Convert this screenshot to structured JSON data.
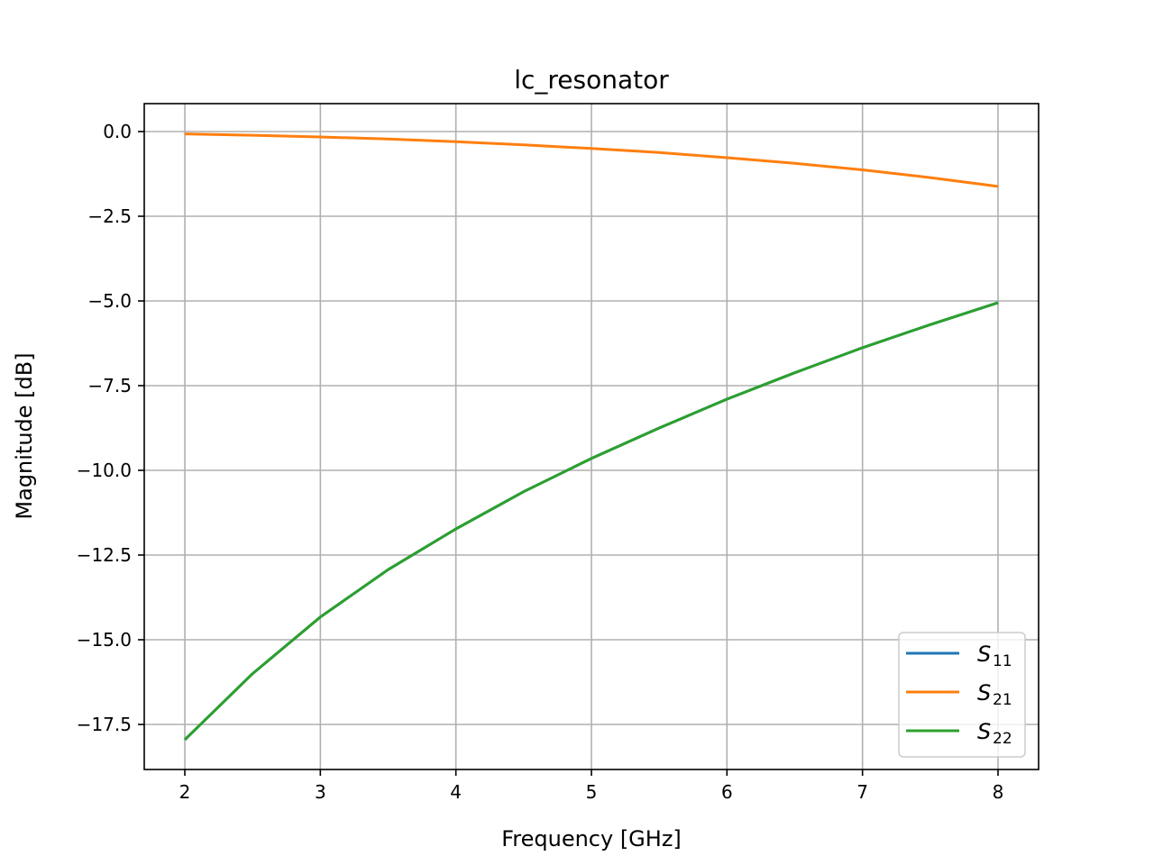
{
  "chart_data": {
    "type": "line",
    "title": "lc_resonator",
    "xlabel": "Frequency [GHz]",
    "ylabel": "Magnitude [dB]",
    "xlim": [
      1.7,
      8.3
    ],
    "ylim": [
      -18.8,
      0.8
    ],
    "xticks": [
      2,
      3,
      4,
      5,
      6,
      7,
      8
    ],
    "xtick_labels": [
      "2",
      "3",
      "4",
      "5",
      "6",
      "7",
      "8"
    ],
    "yticks": [
      0,
      -2.5,
      -5,
      -7.5,
      -10,
      -12.5,
      -15,
      -17.5
    ],
    "ytick_labels": [
      "0.0",
      "−2.5",
      "−5.0",
      "−7.5",
      "−10.0",
      "−12.5",
      "−15.0",
      "−17.5"
    ],
    "grid": true,
    "legend_position": "lower-right",
    "x": [
      2,
      2.5,
      3,
      3.5,
      4,
      4.5,
      5,
      5.5,
      6,
      6.5,
      7,
      7.5,
      8
    ],
    "series": [
      {
        "label": "S",
        "sub": "11",
        "color": "#1f77b4",
        "values": [
          -17.95,
          -16.0,
          -14.33,
          -12.93,
          -11.73,
          -10.63,
          -9.65,
          -8.75,
          -7.9,
          -7.12,
          -6.38,
          -5.7,
          -5.05
        ]
      },
      {
        "label": "S",
        "sub": "21",
        "color": "#ff7f0e",
        "values": [
          -0.07,
          -0.11,
          -0.16,
          -0.22,
          -0.3,
          -0.39,
          -0.5,
          -0.62,
          -0.77,
          -0.94,
          -1.13,
          -1.36,
          -1.62
        ]
      },
      {
        "label": "S",
        "sub": "22",
        "color": "#2ca02c",
        "values": [
          -17.95,
          -16.0,
          -14.33,
          -12.93,
          -11.73,
          -10.63,
          -9.65,
          -8.75,
          -7.9,
          -7.12,
          -6.38,
          -5.7,
          -5.05
        ]
      }
    ]
  }
}
